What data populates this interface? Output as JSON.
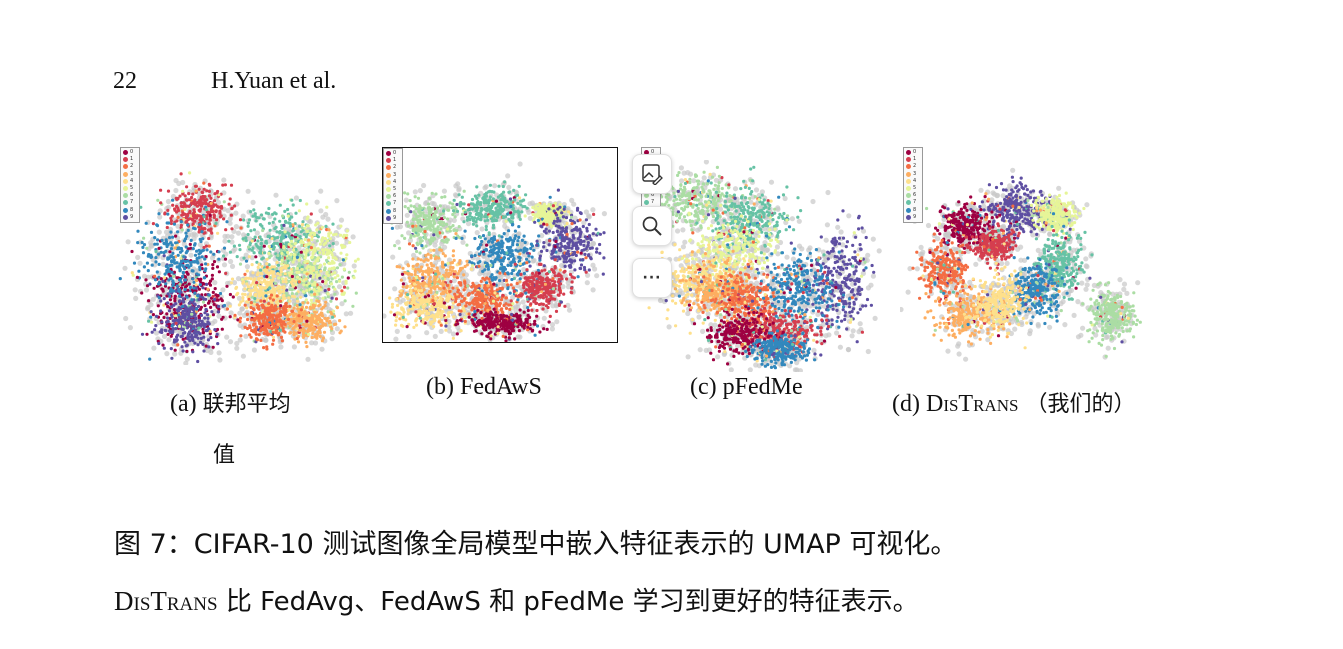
{
  "header": {
    "page_number": "22",
    "authors": "H.Yuan et al."
  },
  "legend_labels": [
    "0",
    "1",
    "2",
    "3",
    "4",
    "5",
    "6",
    "7",
    "8",
    "9"
  ],
  "class_colors": [
    "#9e0142",
    "#d53e4f",
    "#f46d43",
    "#fdae61",
    "#fee08b",
    "#e6f598",
    "#abdda4",
    "#66c2a5",
    "#3288bd",
    "#5e4fa2"
  ],
  "subfigures": [
    {
      "caption_prefix": "(a) ",
      "caption_cjk": "联邦平均",
      "caption_line2": "值"
    },
    {
      "caption": "(b) FedAwS"
    },
    {
      "caption": "(c) pFedMe"
    },
    {
      "caption_prefix": "(d) ",
      "caption_sc": "DisTrans",
      "caption_cjk": " （我们的）"
    }
  ],
  "toolbar": {
    "icons": [
      "edit-image-icon",
      "zoom-icon",
      "more-icon"
    ],
    "more_label": "···"
  },
  "figure_caption": {
    "line1": "图 7：CIFAR-10 测试图像全局模型中嵌入特征表示的 UMAP 可视化。",
    "line2_sc": "DisTrans",
    "line2_rest": " 比 FedAvg、FedAwS 和 pFedMe 学习到更好的特征表示。"
  }
}
